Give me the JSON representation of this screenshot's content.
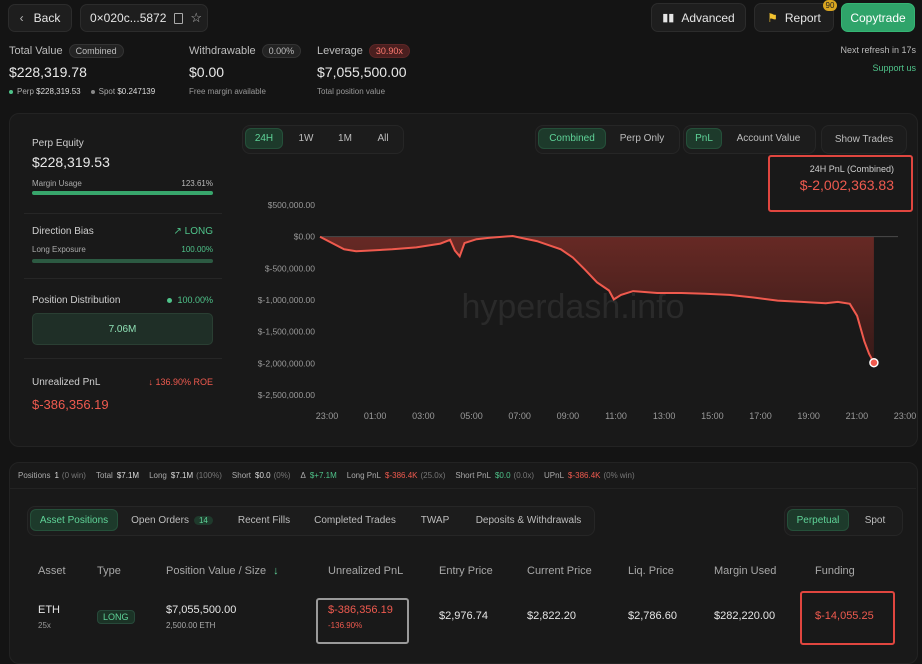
{
  "header": {
    "back_label": "Back",
    "address": "0×020c...5872",
    "advanced_label": "Advanced",
    "report_label": "Report",
    "report_badge": "90",
    "copytrade_label": "Copytrade"
  },
  "summary": {
    "total_value_label": "Total Value",
    "total_value_pill": "Combined",
    "total_value": "$228,319.78",
    "perp_label": "Perp",
    "perp_value": "$228,319.53",
    "spot_label": "Spot",
    "spot_value": "$0.247139",
    "withdrawable_label": "Withdrawable",
    "withdrawable_pill": "0.00%",
    "withdrawable_value": "$0.00",
    "free_margin": "Free margin available",
    "leverage_label": "Leverage",
    "leverage_pill": "30.90x",
    "leverage_value": "$7,055,500.00",
    "total_position_value": "Total position value",
    "next_refresh": "Next refresh in 17s",
    "support": "Support us"
  },
  "left_panel": {
    "perp_equity_label": "Perp Equity",
    "perp_equity": "$228,319.53",
    "margin_usage_label": "Margin Usage",
    "margin_usage": "123.61%",
    "direction_bias_label": "Direction Bias",
    "direction_bias": "LONG",
    "long_exposure_label": "Long Exposure",
    "long_exposure": "100.00%",
    "position_distribution_label": "Position Distribution",
    "position_distribution": "100.00%",
    "distribution_value": "7.06M",
    "unrealized_pnl_label": "Unrealized PnL",
    "unrealized_roe": "136.90% ROE",
    "unrealized_pnl": "$-386,356.19"
  },
  "chart_controls": {
    "ranges": [
      "24H",
      "1W",
      "1M",
      "All"
    ],
    "mode": [
      "Combined",
      "Perp Only"
    ],
    "metric": [
      "PnL",
      "Account Value"
    ],
    "show_trades": "Show Trades",
    "pnl_title": "24H PnL (Combined)",
    "pnl_value": "$-2,002,363.83",
    "watermark": "hyperdash.info"
  },
  "chart_data": {
    "type": "area",
    "yticks": [
      "$500,000.00",
      "$0.00",
      "$-500,000.00",
      "$-1,000,000.00",
      "$-1,500,000.00",
      "$-2,000,000.00",
      "$-2,500,000.00"
    ],
    "ylim": [
      -2500000,
      500000
    ],
    "xticks": [
      "23:00",
      "01:00",
      "03:00",
      "05:00",
      "07:00",
      "09:00",
      "11:00",
      "13:00",
      "15:00",
      "17:00",
      "19:00",
      "21:00",
      "23:00"
    ],
    "x_hours": [
      0,
      0.5,
      1,
      1.5,
      2,
      3,
      4,
      5,
      5.4,
      5.6,
      5.8,
      6,
      6.5,
      7,
      8,
      8.5,
      9,
      10,
      10.5,
      11,
      11.5,
      12,
      12.2,
      12.5,
      13,
      14,
      15,
      16,
      17,
      18,
      19,
      20,
      21,
      21.5,
      22,
      22.3,
      22.6,
      22.8,
      23
    ],
    "values": [
      0,
      -100000,
      -200000,
      -230000,
      -220000,
      -200000,
      -170000,
      -110000,
      -50000,
      -220000,
      -310000,
      -100000,
      -40000,
      -20000,
      10000,
      -30000,
      -70000,
      -200000,
      -330000,
      -520000,
      -720000,
      -850000,
      -990000,
      -920000,
      -860000,
      -890000,
      -890000,
      -900000,
      -920000,
      -960000,
      -1010000,
      -1030000,
      -1050000,
      -1030000,
      -1060000,
      -1250000,
      -1650000,
      -1850000,
      -1990000
    ]
  },
  "stats": [
    {
      "label": "Positions",
      "value": "1",
      "extra": "(0 win)",
      "cls": ""
    },
    {
      "label": "Total",
      "value": "$7.1M",
      "extra": "",
      "cls": ""
    },
    {
      "label": "Long",
      "value": "$7.1M",
      "extra": "(100%)",
      "cls": ""
    },
    {
      "label": "Short",
      "value": "$0.0",
      "extra": "(0%)",
      "cls": ""
    },
    {
      "label": "Δ",
      "value": "$+7.1M",
      "extra": "",
      "cls": "green"
    },
    {
      "label": "Long PnL",
      "value": "$-386.4K",
      "extra": "(25.0x)",
      "cls": "red"
    },
    {
      "label": "Short PnL",
      "value": "$0.0",
      "extra": "(0.0x)",
      "cls": "green"
    },
    {
      "label": "UPnL",
      "value": "$-386.4K",
      "extra": "(0% win)",
      "cls": "red"
    }
  ],
  "tabs": {
    "asset_positions": "Asset Positions",
    "open_orders": "Open Orders",
    "open_orders_count": "14",
    "recent_fills": "Recent Fills",
    "completed_trades": "Completed Trades",
    "twap": "TWAP",
    "deposits": "Deposits & Withdrawals",
    "perpetual": "Perpetual",
    "spot": "Spot"
  },
  "table": {
    "headers": [
      "Asset",
      "Type",
      "Position Value / Size",
      "Unrealized PnL",
      "Entry Price",
      "Current Price",
      "Liq. Price",
      "Margin Used",
      "Funding"
    ],
    "sort_icon": "↓",
    "row": {
      "asset": "ETH",
      "leverage": "25x",
      "type": "LONG",
      "position_value": "$7,055,500.00",
      "size": "2,500.00 ETH",
      "upnl": "$-386,356.19",
      "upnl_pct": "-136.90%",
      "entry": "$2,976.74",
      "current": "$2,822.20",
      "liq": "$2,786.60",
      "margin": "$282,220.00",
      "funding": "$-14,055.25"
    }
  },
  "colors": {
    "accent_green": "#4fc38a",
    "loss_red": "#ef5a4f",
    "highlight_box": "#e0463f"
  }
}
